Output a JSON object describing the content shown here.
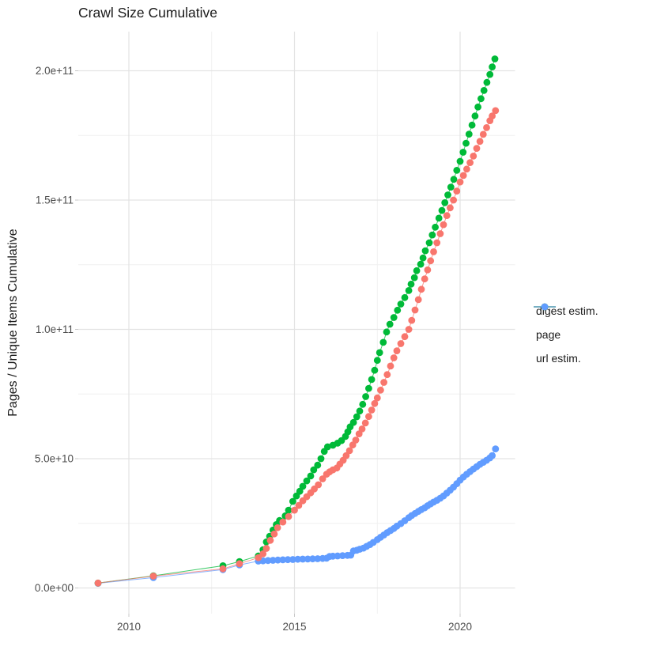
{
  "title": "Crawl Size Cumulative",
  "y_axis": {
    "label": "Pages / Unique Items Cumulative",
    "tick_labels": [
      "0.0e+00",
      "5.0e+10",
      "1.0e+11",
      "1.5e+11",
      "2.0e+11"
    ],
    "tick_values_e9": [
      0,
      50,
      100,
      150,
      200
    ],
    "minor_values_e9": [
      25,
      75,
      125,
      175
    ]
  },
  "x_axis": {
    "tick_labels": [
      "2010",
      "2015",
      "2020"
    ],
    "tick_values": [
      2010,
      2015,
      2020
    ],
    "minor_values": [
      2012.5,
      2017.5
    ]
  },
  "legend": {
    "items": [
      {
        "label": "digest estim.",
        "color": "#F8766D"
      },
      {
        "label": "page",
        "color": "#00BA38"
      },
      {
        "label": "url estim.",
        "color": "#619CFF"
      }
    ]
  },
  "colors": {
    "grid_major": "#e3e3e3",
    "grid_minor": "#f0f0f0",
    "axis_text": "#4d4d4d",
    "tick_mark": "#c8c8c8"
  },
  "chart_data": {
    "type": "scatter",
    "title": "Crawl Size Cumulative",
    "xlabel": "",
    "ylabel": "Pages / Unique Items Cumulative",
    "xlim": [
      2008.5,
      2021.7
    ],
    "ylim_e9": [
      -10,
      215
    ],
    "y_unit": "pages (1e9, i.e. values are billions)",
    "x_unit": "decimal year",
    "grid": "major+minor",
    "legend_position": "right",
    "series": [
      {
        "name": "url estim.",
        "color": "#619CFF",
        "points": [
          [
            2009.07,
            1.8
          ],
          [
            2010.74,
            4.0
          ],
          [
            2012.84,
            7.1
          ],
          [
            2013.34,
            8.9
          ],
          [
            2013.91,
            10.4
          ],
          [
            2014.05,
            10.5
          ],
          [
            2014.2,
            10.6
          ],
          [
            2014.35,
            10.7
          ],
          [
            2014.5,
            10.8
          ],
          [
            2014.65,
            10.9
          ],
          [
            2014.8,
            10.95
          ],
          [
            2014.95,
            11.0
          ],
          [
            2015.1,
            11.1
          ],
          [
            2015.25,
            11.15
          ],
          [
            2015.4,
            11.2
          ],
          [
            2015.55,
            11.25
          ],
          [
            2015.7,
            11.3
          ],
          [
            2015.85,
            11.4
          ],
          [
            2015.97,
            11.5
          ],
          [
            2016.06,
            12.2
          ],
          [
            2016.16,
            12.3
          ],
          [
            2016.3,
            12.4
          ],
          [
            2016.45,
            12.5
          ],
          [
            2016.6,
            12.6
          ],
          [
            2016.7,
            12.7
          ],
          [
            2016.78,
            14.3
          ],
          [
            2016.88,
            14.6
          ],
          [
            2016.97,
            15.0
          ],
          [
            2017.08,
            15.4
          ],
          [
            2017.18,
            16.1
          ],
          [
            2017.28,
            16.8
          ],
          [
            2017.38,
            17.6
          ],
          [
            2017.5,
            18.7
          ],
          [
            2017.6,
            19.6
          ],
          [
            2017.7,
            20.5
          ],
          [
            2017.8,
            21.4
          ],
          [
            2017.9,
            22.2
          ],
          [
            2018.0,
            23.0
          ],
          [
            2018.09,
            23.9
          ],
          [
            2018.21,
            24.9
          ],
          [
            2018.33,
            26.0
          ],
          [
            2018.45,
            27.2
          ],
          [
            2018.54,
            28.0
          ],
          [
            2018.64,
            28.8
          ],
          [
            2018.74,
            29.6
          ],
          [
            2018.83,
            30.3
          ],
          [
            2018.93,
            31.0
          ],
          [
            2019.02,
            31.8
          ],
          [
            2019.11,
            32.5
          ],
          [
            2019.2,
            33.2
          ],
          [
            2019.3,
            33.9
          ],
          [
            2019.4,
            34.7
          ],
          [
            2019.5,
            35.6
          ],
          [
            2019.6,
            36.7
          ],
          [
            2019.7,
            37.8
          ],
          [
            2019.8,
            39.0
          ],
          [
            2019.9,
            40.3
          ],
          [
            2020.0,
            41.7
          ],
          [
            2020.1,
            42.9
          ],
          [
            2020.2,
            44.0
          ],
          [
            2020.3,
            45.0
          ],
          [
            2020.4,
            46.0
          ],
          [
            2020.5,
            46.9
          ],
          [
            2020.6,
            47.8
          ],
          [
            2020.7,
            48.6
          ],
          [
            2020.8,
            49.4
          ],
          [
            2020.9,
            50.3
          ],
          [
            2020.97,
            51.2
          ],
          [
            2021.07,
            53.8
          ]
        ]
      },
      {
        "name": "page",
        "color": "#00BA38",
        "points": [
          [
            2009.07,
            1.9
          ],
          [
            2010.74,
            4.7
          ],
          [
            2012.84,
            8.6
          ],
          [
            2013.34,
            10.2
          ],
          [
            2013.91,
            12.4
          ],
          [
            2014.05,
            14.8
          ],
          [
            2014.15,
            17.8
          ],
          [
            2014.25,
            20.0
          ],
          [
            2014.35,
            22.4
          ],
          [
            2014.45,
            24.5
          ],
          [
            2014.55,
            26.1
          ],
          [
            2014.72,
            27.9
          ],
          [
            2014.82,
            30.1
          ],
          [
            2014.95,
            33.5
          ],
          [
            2015.06,
            35.6
          ],
          [
            2015.16,
            37.4
          ],
          [
            2015.25,
            39.3
          ],
          [
            2015.37,
            41.4
          ],
          [
            2015.49,
            43.3
          ],
          [
            2015.58,
            45.7
          ],
          [
            2015.7,
            47.5
          ],
          [
            2015.8,
            50.0
          ],
          [
            2015.9,
            52.8
          ],
          [
            2016.0,
            54.6
          ],
          [
            2016.16,
            55.2
          ],
          [
            2016.3,
            56.0
          ],
          [
            2016.42,
            57.0
          ],
          [
            2016.54,
            58.6
          ],
          [
            2016.61,
            60.4
          ],
          [
            2016.68,
            62.3
          ],
          [
            2016.78,
            64.0
          ],
          [
            2016.88,
            66.2
          ],
          [
            2016.97,
            68.4
          ],
          [
            2017.06,
            71.0
          ],
          [
            2017.15,
            74.0
          ],
          [
            2017.24,
            77.2
          ],
          [
            2017.33,
            80.6
          ],
          [
            2017.42,
            84.2
          ],
          [
            2017.5,
            88.0
          ],
          [
            2017.57,
            91.0
          ],
          [
            2017.68,
            95.0
          ],
          [
            2017.78,
            99.0
          ],
          [
            2017.88,
            102.0
          ],
          [
            2018.0,
            104.6
          ],
          [
            2018.11,
            107.4
          ],
          [
            2018.21,
            109.8
          ],
          [
            2018.33,
            112.3
          ],
          [
            2018.45,
            115.0
          ],
          [
            2018.52,
            117.5
          ],
          [
            2018.62,
            120.0
          ],
          [
            2018.69,
            122.7
          ],
          [
            2018.81,
            125.2
          ],
          [
            2018.88,
            127.6
          ],
          [
            2018.95,
            130.4
          ],
          [
            2019.07,
            133.5
          ],
          [
            2019.16,
            136.5
          ],
          [
            2019.25,
            139.5
          ],
          [
            2019.36,
            143.0
          ],
          [
            2019.45,
            146.0
          ],
          [
            2019.54,
            149.0
          ],
          [
            2019.63,
            152.0
          ],
          [
            2019.72,
            155.0
          ],
          [
            2019.81,
            158.0
          ],
          [
            2019.9,
            161.5
          ],
          [
            2020.0,
            165.0
          ],
          [
            2020.09,
            168.5
          ],
          [
            2020.18,
            172.0
          ],
          [
            2020.27,
            175.5
          ],
          [
            2020.36,
            179.0
          ],
          [
            2020.45,
            182.5
          ],
          [
            2020.54,
            186.0
          ],
          [
            2020.63,
            189.2
          ],
          [
            2020.72,
            192.4
          ],
          [
            2020.81,
            195.5
          ],
          [
            2020.9,
            198.6
          ],
          [
            2020.97,
            201.5
          ],
          [
            2021.05,
            204.6
          ]
        ]
      },
      {
        "name": "digest estim.",
        "color": "#F8766D",
        "points": [
          [
            2009.07,
            1.9
          ],
          [
            2010.74,
            4.6
          ],
          [
            2012.84,
            7.4
          ],
          [
            2013.34,
            9.4
          ],
          [
            2013.91,
            11.7
          ],
          [
            2014.05,
            13.2
          ],
          [
            2014.15,
            15.3
          ],
          [
            2014.27,
            18.4
          ],
          [
            2014.39,
            20.9
          ],
          [
            2014.49,
            23.3
          ],
          [
            2014.65,
            25.5
          ],
          [
            2014.82,
            27.6
          ],
          [
            2015.0,
            30.1
          ],
          [
            2015.13,
            31.9
          ],
          [
            2015.25,
            33.7
          ],
          [
            2015.37,
            35.3
          ],
          [
            2015.49,
            36.8
          ],
          [
            2015.6,
            38.3
          ],
          [
            2015.72,
            39.9
          ],
          [
            2015.85,
            42.2
          ],
          [
            2015.97,
            44.0
          ],
          [
            2016.06,
            44.9
          ],
          [
            2016.16,
            45.7
          ],
          [
            2016.28,
            46.4
          ],
          [
            2016.37,
            47.9
          ],
          [
            2016.47,
            49.4
          ],
          [
            2016.56,
            51.2
          ],
          [
            2016.66,
            53.1
          ],
          [
            2016.76,
            55.3
          ],
          [
            2016.85,
            57.2
          ],
          [
            2016.95,
            59.6
          ],
          [
            2017.04,
            61.5
          ],
          [
            2017.14,
            63.8
          ],
          [
            2017.24,
            66.3
          ],
          [
            2017.33,
            68.8
          ],
          [
            2017.42,
            71.3
          ],
          [
            2017.5,
            73.5
          ],
          [
            2017.6,
            76.5
          ],
          [
            2017.7,
            79.5
          ],
          [
            2017.8,
            82.5
          ],
          [
            2017.9,
            85.8
          ],
          [
            2018.0,
            89.0
          ],
          [
            2018.09,
            91.7
          ],
          [
            2018.21,
            94.5
          ],
          [
            2018.33,
            97.2
          ],
          [
            2018.45,
            100.0
          ],
          [
            2018.54,
            103.5
          ],
          [
            2018.64,
            107.5
          ],
          [
            2018.74,
            111.5
          ],
          [
            2018.83,
            115.5
          ],
          [
            2018.93,
            119.5
          ],
          [
            2019.02,
            123.0
          ],
          [
            2019.11,
            126.5
          ],
          [
            2019.2,
            130.0
          ],
          [
            2019.3,
            133.5
          ],
          [
            2019.4,
            137.0
          ],
          [
            2019.5,
            140.5
          ],
          [
            2019.6,
            144.0
          ],
          [
            2019.7,
            147.0
          ],
          [
            2019.8,
            150.0
          ],
          [
            2019.9,
            153.5
          ],
          [
            2020.0,
            157.0
          ],
          [
            2020.1,
            159.5
          ],
          [
            2020.2,
            162.0
          ],
          [
            2020.3,
            164.5
          ],
          [
            2020.4,
            167.0
          ],
          [
            2020.5,
            170.0
          ],
          [
            2020.6,
            172.7
          ],
          [
            2020.7,
            175.4
          ],
          [
            2020.8,
            178.0
          ],
          [
            2020.9,
            180.7
          ],
          [
            2020.97,
            182.5
          ],
          [
            2021.07,
            184.6
          ]
        ]
      }
    ]
  }
}
